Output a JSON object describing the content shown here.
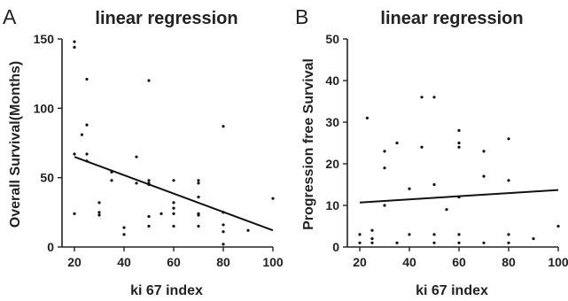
{
  "chart_data": [
    {
      "type": "scatter",
      "panel": "A",
      "title": "linear regression",
      "xlabel": "ki 67 index",
      "ylabel": "Overall Survival(Months)",
      "xlim": [
        15,
        100
      ],
      "ylim": [
        0,
        150
      ],
      "xticks": [
        20,
        40,
        60,
        80,
        100
      ],
      "yticks": [
        0,
        50,
        100,
        150
      ],
      "grid": false,
      "points": [
        [
          20,
          148
        ],
        [
          20,
          144
        ],
        [
          20,
          67
        ],
        [
          20,
          24
        ],
        [
          23,
          81
        ],
        [
          25,
          121
        ],
        [
          25,
          88
        ],
        [
          25,
          67
        ],
        [
          25,
          62
        ],
        [
          30,
          32
        ],
        [
          30,
          25
        ],
        [
          30,
          23
        ],
        [
          35,
          54
        ],
        [
          35,
          48
        ],
        [
          40,
          14
        ],
        [
          40,
          9
        ],
        [
          45,
          65
        ],
        [
          45,
          46
        ],
        [
          50,
          120
        ],
        [
          50,
          48
        ],
        [
          50,
          46
        ],
        [
          50,
          45
        ],
        [
          50,
          22
        ],
        [
          50,
          15
        ],
        [
          55,
          24
        ],
        [
          60,
          48
        ],
        [
          60,
          32
        ],
        [
          60,
          28
        ],
        [
          60,
          24
        ],
        [
          60,
          15
        ],
        [
          70,
          48
        ],
        [
          70,
          46
        ],
        [
          70,
          36
        ],
        [
          70,
          24
        ],
        [
          70,
          23
        ],
        [
          70,
          15
        ],
        [
          80,
          87
        ],
        [
          80,
          25
        ],
        [
          80,
          16
        ],
        [
          80,
          11
        ],
        [
          80,
          2
        ],
        [
          90,
          12
        ],
        [
          100,
          35
        ]
      ],
      "regression": {
        "x": [
          20,
          100
        ],
        "y": [
          65,
          12
        ]
      }
    },
    {
      "type": "scatter",
      "panel": "B",
      "title": "linear regression",
      "xlabel": "ki 67 index",
      "ylabel": "Progression free Survival",
      "xlim": [
        15,
        100
      ],
      "ylim": [
        0,
        50
      ],
      "xticks": [
        20,
        40,
        60,
        80,
        100
      ],
      "yticks": [
        0,
        10,
        20,
        30,
        40,
        50
      ],
      "grid": false,
      "points": [
        [
          20,
          3
        ],
        [
          20,
          1
        ],
        [
          23,
          31
        ],
        [
          25,
          4
        ],
        [
          25,
          2
        ],
        [
          25,
          1
        ],
        [
          30,
          23
        ],
        [
          30,
          19
        ],
        [
          30,
          10
        ],
        [
          35,
          25
        ],
        [
          35,
          1
        ],
        [
          40,
          14
        ],
        [
          40,
          3
        ],
        [
          45,
          36
        ],
        [
          45,
          24
        ],
        [
          50,
          36
        ],
        [
          50,
          15
        ],
        [
          50,
          3
        ],
        [
          50,
          1
        ],
        [
          55,
          9
        ],
        [
          60,
          28
        ],
        [
          60,
          25
        ],
        [
          60,
          24
        ],
        [
          60,
          12
        ],
        [
          60,
          3
        ],
        [
          60,
          1
        ],
        [
          70,
          23
        ],
        [
          70,
          17
        ],
        [
          70,
          1
        ],
        [
          80,
          26
        ],
        [
          80,
          16
        ],
        [
          80,
          3
        ],
        [
          80,
          1
        ],
        [
          90,
          2
        ],
        [
          100,
          5
        ]
      ],
      "regression": {
        "x": [
          20,
          100
        ],
        "y": [
          10.7,
          13.7
        ]
      }
    }
  ]
}
